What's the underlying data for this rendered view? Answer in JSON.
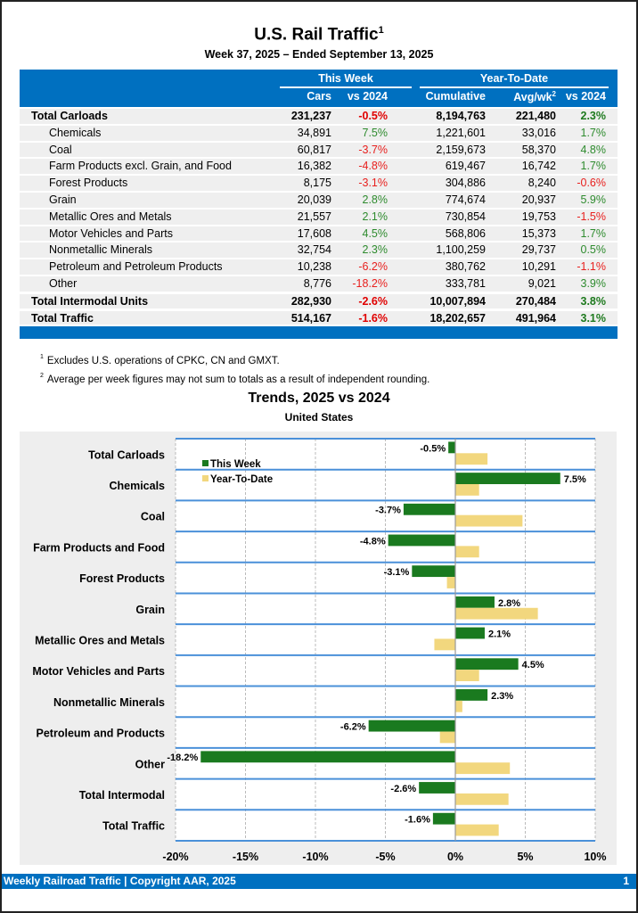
{
  "header": {
    "title": "U.S. Rail Traffic",
    "title_footnote": "1",
    "subtitle": "Week 37, 2025 – Ended September 13, 2025"
  },
  "table": {
    "group_this_week": "This Week",
    "group_ytd": "Year-To-Date",
    "columns": {
      "cars": "Cars",
      "vs2024_week": "vs 2024",
      "cumulative": "Cumulative",
      "avgwk": "Avg/wk",
      "avgwk_footnote": "2",
      "vs2024_ytd": "vs 2024"
    },
    "rows": [
      {
        "label": "Total Carloads",
        "type": "total",
        "cars": "231,237",
        "week_pct": "-0.5%",
        "cumulative": "8,194,763",
        "avgwk": "221,480",
        "ytd_pct": "2.3%"
      },
      {
        "label": "Chemicals",
        "type": "sub",
        "cars": "34,891",
        "week_pct": "7.5%",
        "cumulative": "1,221,601",
        "avgwk": "33,016",
        "ytd_pct": "1.7%"
      },
      {
        "label": "Coal",
        "type": "sub",
        "cars": "60,817",
        "week_pct": "-3.7%",
        "cumulative": "2,159,673",
        "avgwk": "58,370",
        "ytd_pct": "4.8%"
      },
      {
        "label": "Farm Products excl. Grain, and Food",
        "type": "sub",
        "cars": "16,382",
        "week_pct": "-4.8%",
        "cumulative": "619,467",
        "avgwk": "16,742",
        "ytd_pct": "1.7%"
      },
      {
        "label": "Forest Products",
        "type": "sub",
        "cars": "8,175",
        "week_pct": "-3.1%",
        "cumulative": "304,886",
        "avgwk": "8,240",
        "ytd_pct": "-0.6%"
      },
      {
        "label": "Grain",
        "type": "sub",
        "cars": "20,039",
        "week_pct": "2.8%",
        "cumulative": "774,674",
        "avgwk": "20,937",
        "ytd_pct": "5.9%"
      },
      {
        "label": "Metallic Ores and Metals",
        "type": "sub",
        "cars": "21,557",
        "week_pct": "2.1%",
        "cumulative": "730,854",
        "avgwk": "19,753",
        "ytd_pct": "-1.5%"
      },
      {
        "label": "Motor Vehicles and Parts",
        "type": "sub",
        "cars": "17,608",
        "week_pct": "4.5%",
        "cumulative": "568,806",
        "avgwk": "15,373",
        "ytd_pct": "1.7%"
      },
      {
        "label": "Nonmetallic Minerals",
        "type": "sub",
        "cars": "32,754",
        "week_pct": "2.3%",
        "cumulative": "1,100,259",
        "avgwk": "29,737",
        "ytd_pct": "0.5%"
      },
      {
        "label": "Petroleum and Petroleum Products",
        "type": "sub",
        "cars": "10,238",
        "week_pct": "-6.2%",
        "cumulative": "380,762",
        "avgwk": "10,291",
        "ytd_pct": "-1.1%"
      },
      {
        "label": "Other",
        "type": "sub",
        "cars": "8,776",
        "week_pct": "-18.2%",
        "cumulative": "333,781",
        "avgwk": "9,021",
        "ytd_pct": "3.9%"
      },
      {
        "label": "Total Intermodal Units",
        "type": "total",
        "cars": "282,930",
        "week_pct": "-2.6%",
        "cumulative": "10,007,894",
        "avgwk": "270,484",
        "ytd_pct": "3.8%"
      },
      {
        "label": "Total Traffic",
        "type": "total",
        "cars": "514,167",
        "week_pct": "-1.6%",
        "cumulative": "18,202,657",
        "avgwk": "491,964",
        "ytd_pct": "3.1%"
      }
    ]
  },
  "footnotes": [
    {
      "mark": "1",
      "text": "Excludes U.S. operations of CPKC, CN and GMXT."
    },
    {
      "mark": "2",
      "text": "Average per week figures may not sum to totals as a result of independent rounding."
    }
  ],
  "colors": {
    "brand_blue": "#0070C0",
    "this_week_bar": "#1A7A1F",
    "ytd_bar": "#F2D77E",
    "positive": "#2E8B2E",
    "negative": "#E8201E"
  },
  "chart_data": {
    "type": "bar",
    "orientation": "horizontal",
    "title": "Trends, 2025 vs 2024",
    "subtitle": "United States",
    "categories": [
      "Total Carloads",
      "Chemicals",
      "Coal",
      "Farm Products and Food",
      "Forest Products",
      "Grain",
      "Metallic Ores and Metals",
      "Motor Vehicles and Parts",
      "Nonmetallic Minerals",
      "Petroleum and Products",
      "Other",
      "Total Intermodal",
      "Total Traffic"
    ],
    "series": [
      {
        "name": "This Week",
        "values": [
          -0.5,
          7.5,
          -3.7,
          -4.8,
          -3.1,
          2.8,
          2.1,
          4.5,
          2.3,
          -6.2,
          -18.2,
          -2.6,
          -1.6
        ],
        "labels": [
          "-0.5%",
          "7.5%",
          "-3.7%",
          "-4.8%",
          "-3.1%",
          "2.8%",
          "2.1%",
          "4.5%",
          "2.3%",
          "-6.2%",
          "-18.2%",
          "-2.6%",
          "-1.6%"
        ]
      },
      {
        "name": "Year-To-Date",
        "values": [
          2.3,
          1.7,
          4.8,
          1.7,
          -0.6,
          5.9,
          -1.5,
          1.7,
          0.5,
          -1.1,
          3.9,
          3.8,
          3.1
        ]
      }
    ],
    "xlim": [
      -20,
      10
    ],
    "xticks": [
      "-20%",
      "-15%",
      "-10%",
      "-5%",
      "0%",
      "5%",
      "10%"
    ],
    "xtick_values": [
      -20,
      -15,
      -10,
      -5,
      0,
      5,
      10
    ],
    "legend": "top-left",
    "grid": true
  },
  "footer": {
    "text": "Weekly Railroad Traffic | Copyright AAR, 2025",
    "page": "1"
  }
}
